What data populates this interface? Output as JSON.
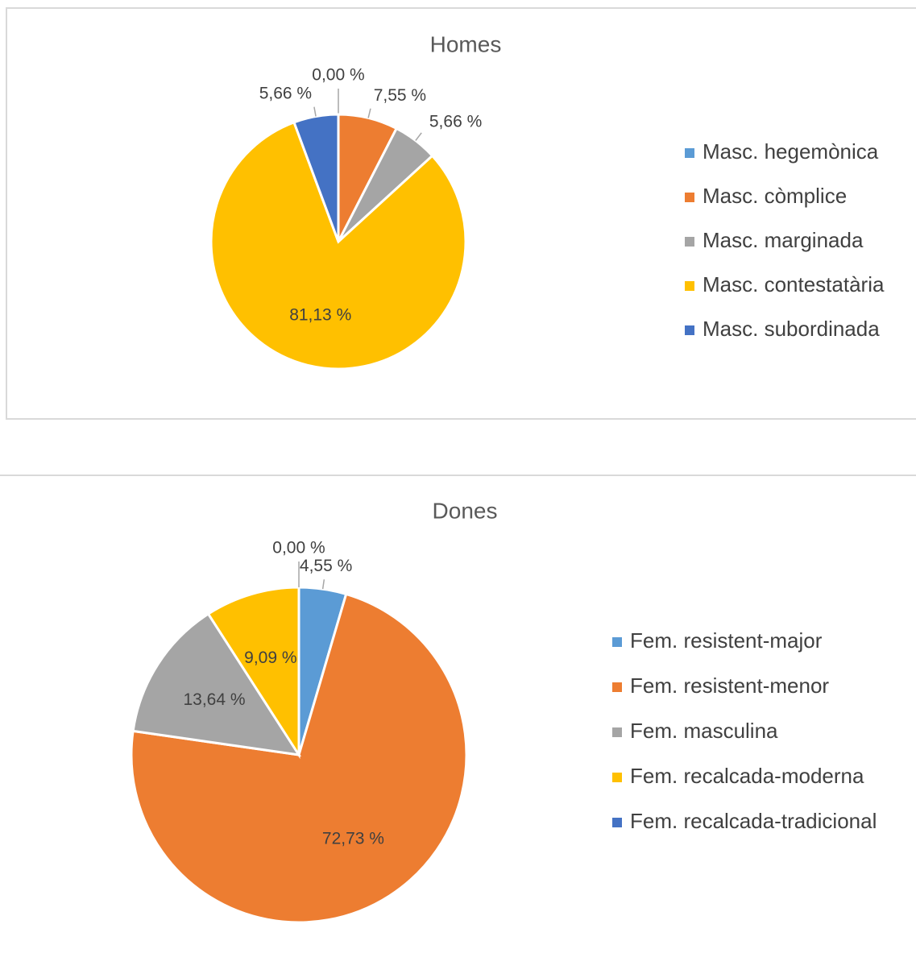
{
  "chart_data": [
    {
      "type": "pie",
      "title": "Homes",
      "categories": [
        "Masc. hegemònica",
        "Masc. còmplice",
        "Masc. marginada",
        "Masc. contestatària",
        "Masc. subordinada"
      ],
      "values": [
        0,
        7.55,
        5.66,
        81.13,
        5.66
      ],
      "value_labels": [
        "0,00 %",
        "7,55 %",
        "5,66 %",
        "81,13 %",
        "5,66 %"
      ],
      "colors": [
        "#5b9bd5",
        "#ed7d31",
        "#a5a5a5",
        "#ffc000",
        "#4472c4"
      ],
      "legend": "right"
    },
    {
      "type": "pie",
      "title": "Dones",
      "categories": [
        "Fem. resistent-major",
        "Fem. resistent-menor",
        "Fem. masculina",
        "Fem. recalcada-moderna",
        "Fem. recalcada-tradicional"
      ],
      "values": [
        4.55,
        72.73,
        13.64,
        9.09,
        0
      ],
      "value_labels": [
        "4,55 %",
        "72,73 %",
        "13,64 %",
        "9,09 %",
        "0,00 %"
      ],
      "colors": [
        "#5b9bd5",
        "#ed7d31",
        "#a5a5a5",
        "#ffc000",
        "#4472c4"
      ],
      "legend": "right"
    }
  ]
}
